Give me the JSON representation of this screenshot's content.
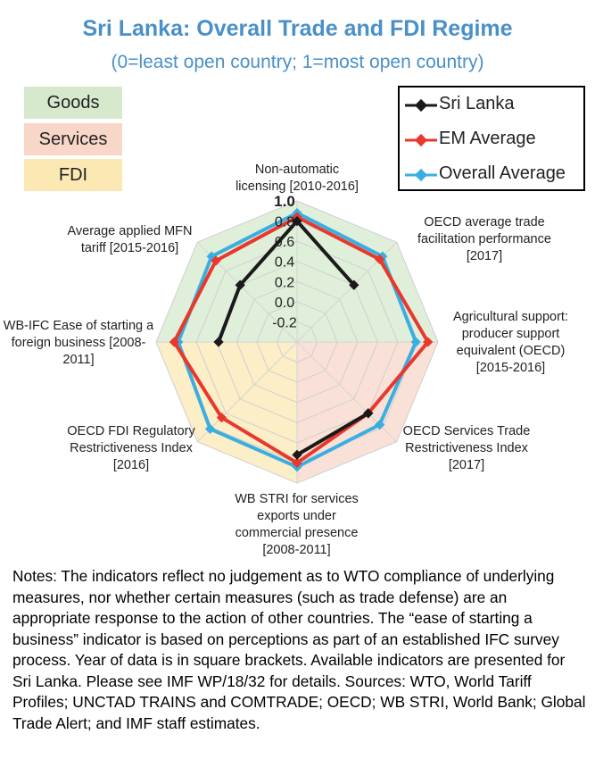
{
  "header": {
    "title": "Sri Lanka: Overall Trade and FDI Regime",
    "subtitle": "(0=least open country; 1=most open country)"
  },
  "sectors": [
    {
      "label": "Goods",
      "color": "#d6e9cd"
    },
    {
      "label": "Services",
      "color": "#f8d7c9"
    },
    {
      "label": "FDI",
      "color": "#fbe8b3"
    }
  ],
  "chart_data": {
    "type": "radar",
    "axes": [
      "Non-automatic licensing [2010-2016]",
      "OECD average trade facilitation performance [2017]",
      "Agricultural support: producer support equivalent (OECD) [2015-2016]",
      "OECD Services Trade Restrictiveness Index [2017]",
      "WB STRI for services exports under commercial presence [2008-2011]",
      "OECD FDI Regulatory Restrictiveness Index [2016]",
      "WB-IFC Ease of starting a foreign business [2008-2011]",
      "Average applied MFN tariff [2015-2016]"
    ],
    "ticks": [
      "1.0",
      "0.8",
      "0.6",
      "0.4",
      "0.2",
      "0.0",
      "-0.2"
    ],
    "rlim": [
      -0.4,
      1.0
    ],
    "series": [
      {
        "name": "Sri Lanka",
        "color": "#1a1a1a",
        "values": [
          0.8,
          0.4,
          null,
          0.6,
          0.72,
          null,
          0.38,
          0.4
        ]
      },
      {
        "name": "EM Average",
        "color": "#e8382b",
        "values": [
          0.84,
          0.76,
          0.9,
          0.6,
          0.8,
          0.66,
          0.82,
          0.74
        ]
      },
      {
        "name": "Overall Average",
        "color": "#3aaee0",
        "values": [
          0.88,
          0.8,
          0.78,
          0.76,
          0.84,
          0.82,
          0.78,
          0.8
        ]
      }
    ]
  },
  "notes": "Notes: The indicators reflect no judgement as to WTO compliance of underlying measures, nor whether certain measures (such as trade defense) are an appropriate response to the action of other countries. The “ease of starting a business” indicator is based on perceptions as part of an established IFC survey process. Year of data is in square brackets. Available indicators are presented for Sri Lanka. Please see IMF WP/18/32 for details. Sources: WTO, World Tariff Profiles; UNCTAD TRAINS and COMTRADE; OECD; WB STRI, World Bank; Global Trade Alert; and IMF staff estimates."
}
